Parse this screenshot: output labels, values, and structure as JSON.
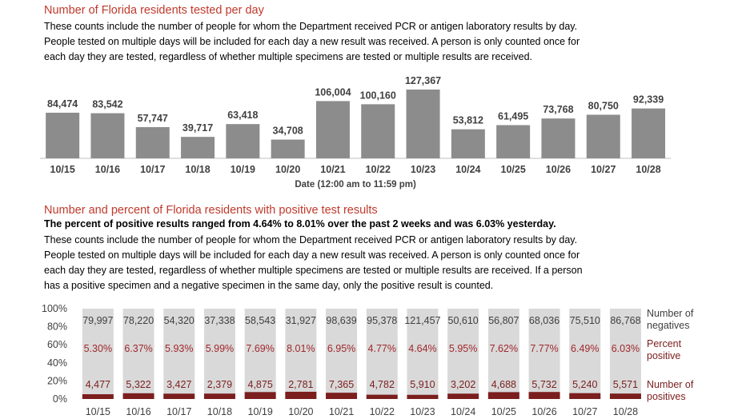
{
  "section1": {
    "title": "Number of Florida residents tested per day",
    "paragraph": [
      "These counts include the number of people for whom the Department received PCR or antigen laboratory results by day.",
      "People tested on multiple days will be included for each day a new result was received. A person is only counted once for",
      "each day they are tested, regardless of whether multiple specimens are tested or multiple results are received."
    ]
  },
  "section2": {
    "title": "Number and percent of Florida residents with positive test results",
    "highlight": "The percent of positive results ranged from 4.64% to 8.01% over the past 2 weeks and was 6.03% yesterday.",
    "paragraph": [
      "These counts include the number of people for whom the Department received PCR or antigen laboratory results by day.",
      "People tested on multiple days will be included for each day a new result was received. A person is only counted once for",
      "each day they are tested, regardless of whether multiple specimens are tested or multiple results are received. If a person",
      "has a positive specimen and a negative specimen in the same day, only the positive result is counted."
    ]
  },
  "colors": {
    "title": "#c0392b",
    "bar_gray": "#8c8c8c",
    "bar_light": "#d9d9d9",
    "positive_bar": "#7b1e1e",
    "percent_text": "#a0282d",
    "legend_text": "#7b1e1e"
  },
  "chart_data": [
    {
      "type": "bar",
      "categories": [
        "10/15",
        "10/16",
        "10/17",
        "10/18",
        "10/19",
        "10/20",
        "10/21",
        "10/22",
        "10/23",
        "10/24",
        "10/25",
        "10/26",
        "10/27",
        "10/28"
      ],
      "values": [
        84474,
        83542,
        57747,
        39717,
        63418,
        34708,
        106004,
        100160,
        127367,
        53812,
        61495,
        73768,
        80750,
        92339
      ],
      "value_labels": [
        "84,474",
        "83,542",
        "57,747",
        "39,717",
        "63,418",
        "34,708",
        "106,004",
        "100,160",
        "127,367",
        "53,812",
        "61,495",
        "73,768",
        "80,750",
        "92,339"
      ],
      "xlabel": "Date (12:00 am to 11:59 pm)",
      "ylabel": ""
    },
    {
      "type": "bar",
      "stacked": true,
      "percent_axis": true,
      "categories": [
        "10/15",
        "10/16",
        "10/17",
        "10/18",
        "10/19",
        "10/20",
        "10/21",
        "10/22",
        "10/23",
        "10/24",
        "10/25",
        "10/26",
        "10/27",
        "10/28"
      ],
      "yticks": [
        "100%",
        "80%",
        "60%",
        "40%",
        "20%",
        "0%"
      ],
      "series": [
        {
          "name": "Number of positives",
          "values": [
            4477,
            5322,
            3427,
            2379,
            4875,
            2781,
            7365,
            4782,
            5910,
            3202,
            4688,
            5732,
            5240,
            5571
          ],
          "labels": [
            "4,477",
            "5,322",
            "3,427",
            "2,379",
            "4,875",
            "2,781",
            "7,365",
            "4,782",
            "5,910",
            "3,202",
            "4,688",
            "5,732",
            "5,240",
            "5,571"
          ]
        },
        {
          "name": "Number of negatives",
          "values": [
            79997,
            78220,
            54320,
            37338,
            58543,
            31927,
            98639,
            95378,
            121457,
            50610,
            56807,
            68036,
            75510,
            86768
          ],
          "labels": [
            "79,997",
            "78,220",
            "54,320",
            "37,338",
            "58,543",
            "31,927",
            "98,639",
            "95,378",
            "121,457",
            "50,610",
            "56,807",
            "68,036",
            "75,510",
            "86,768"
          ]
        }
      ],
      "percent_positive": {
        "name": "Percent positive",
        "values": [
          5.3,
          6.37,
          5.93,
          5.99,
          7.69,
          8.01,
          6.95,
          4.77,
          4.64,
          5.95,
          7.62,
          7.77,
          6.49,
          6.03
        ],
        "labels": [
          "5.30%",
          "6.37%",
          "5.93%",
          "5.99%",
          "7.69%",
          "8.01%",
          "6.95%",
          "4.77%",
          "4.64%",
          "5.95%",
          "7.62%",
          "7.77%",
          "6.49%",
          "6.03%"
        ]
      }
    }
  ]
}
